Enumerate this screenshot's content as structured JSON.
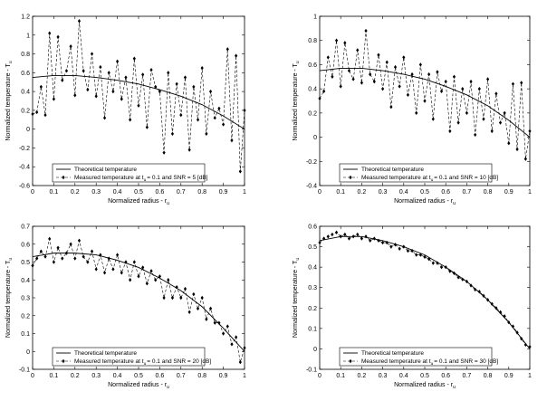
{
  "chart_data": [
    {
      "type": "line",
      "xlabel": "Normalized radius - r",
      "xlabel_sub": "u",
      "ylabel": "Normalized temperature - T",
      "ylabel_sub": "u",
      "xlim": [
        0,
        1
      ],
      "ylim": [
        -0.6,
        1.2
      ],
      "xticks": [
        "0",
        "0.1",
        "0.2",
        "0.3",
        "0.4",
        "0.5",
        "0.6",
        "0.7",
        "0.8",
        "0.9",
        "1"
      ],
      "yticks": [
        "-0.6",
        "-0.4",
        "-0.2",
        "0",
        "0.2",
        "0.4",
        "0.6",
        "0.8",
        "1",
        "1.2"
      ],
      "grid": false,
      "legend_position": "bottom-left",
      "legend": {
        "theoretical": "Theoretical temperature",
        "measured_prefix": "Measured temperature at t",
        "measured_sub": "u",
        "measured_suffix": "= 0.1 and SNR = 5 [dB]"
      },
      "series": [
        {
          "name": "Theoretical temperature",
          "style": "solid",
          "x": [
            0,
            0.1,
            0.2,
            0.3,
            0.4,
            0.5,
            0.6,
            0.7,
            0.8,
            0.9,
            1.0
          ],
          "y": [
            0.55,
            0.57,
            0.57,
            0.55,
            0.52,
            0.48,
            0.42,
            0.35,
            0.26,
            0.14,
            0.0
          ]
        },
        {
          "name": "Measured temperature at tu = 0.1 and SNR = 5 [dB]",
          "style": "dashed-diamond",
          "x": [
            0.0,
            0.02,
            0.04,
            0.06,
            0.08,
            0.1,
            0.12,
            0.14,
            0.16,
            0.18,
            0.2,
            0.22,
            0.24,
            0.26,
            0.28,
            0.3,
            0.32,
            0.34,
            0.36,
            0.38,
            0.4,
            0.42,
            0.44,
            0.46,
            0.48,
            0.5,
            0.52,
            0.54,
            0.56,
            0.58,
            0.6,
            0.62,
            0.64,
            0.66,
            0.68,
            0.7,
            0.72,
            0.74,
            0.76,
            0.78,
            0.8,
            0.82,
            0.84,
            0.86,
            0.88,
            0.9,
            0.92,
            0.94,
            0.96,
            0.98,
            1.0
          ],
          "y": [
            0.16,
            0.18,
            0.45,
            0.15,
            1.02,
            0.32,
            0.98,
            0.52,
            0.62,
            0.88,
            0.36,
            1.15,
            0.62,
            0.42,
            0.8,
            0.35,
            0.66,
            0.12,
            0.6,
            0.4,
            0.72,
            0.32,
            0.55,
            0.1,
            0.75,
            0.25,
            0.58,
            0.02,
            0.63,
            0.45,
            0.4,
            -0.25,
            0.6,
            -0.05,
            0.48,
            0.15,
            0.55,
            -0.22,
            0.45,
            0.1,
            0.65,
            -0.05,
            0.4,
            0.12,
            0.22,
            0.05,
            0.85,
            -0.12,
            0.78,
            -0.45,
            0.2
          ]
        }
      ]
    },
    {
      "type": "line",
      "xlabel": "Normalized radius - r",
      "xlabel_sub": "u",
      "ylabel": "Normalized temperature - T",
      "ylabel_sub": "u",
      "xlim": [
        0,
        1
      ],
      "ylim": [
        -0.4,
        1.0
      ],
      "xticks": [
        "0",
        "0.1",
        "0.2",
        "0.3",
        "0.4",
        "0.5",
        "0.6",
        "0.7",
        "0.8",
        "0.9",
        "1"
      ],
      "yticks": [
        "-0.4",
        "-0.2",
        "0",
        "0.2",
        "0.4",
        "0.6",
        "0.8",
        "1"
      ],
      "grid": false,
      "legend_position": "bottom-left",
      "legend": {
        "theoretical": "Theoretical temperature",
        "measured_prefix": "Measured temperature at t",
        "measured_sub": "u",
        "measured_suffix": "= 0.1 and SNR = 10 [dB]"
      },
      "series": [
        {
          "name": "Theoretical temperature",
          "style": "solid",
          "x": [
            0,
            0.1,
            0.2,
            0.3,
            0.4,
            0.5,
            0.6,
            0.7,
            0.8,
            0.9,
            1.0
          ],
          "y": [
            0.55,
            0.57,
            0.57,
            0.55,
            0.52,
            0.48,
            0.42,
            0.35,
            0.26,
            0.14,
            0.0
          ]
        },
        {
          "name": "Measured temperature at tu = 0.1 and SNR = 10 [dB]",
          "style": "dashed-diamond",
          "x": [
            0.0,
            0.02,
            0.04,
            0.06,
            0.08,
            0.1,
            0.12,
            0.14,
            0.16,
            0.18,
            0.2,
            0.22,
            0.24,
            0.26,
            0.28,
            0.3,
            0.32,
            0.34,
            0.36,
            0.38,
            0.4,
            0.42,
            0.44,
            0.46,
            0.48,
            0.5,
            0.52,
            0.54,
            0.56,
            0.58,
            0.6,
            0.62,
            0.64,
            0.66,
            0.68,
            0.7,
            0.72,
            0.74,
            0.76,
            0.78,
            0.8,
            0.82,
            0.84,
            0.86,
            0.88,
            0.9,
            0.92,
            0.94,
            0.96,
            0.98,
            1.0
          ],
          "y": [
            0.32,
            0.38,
            0.66,
            0.5,
            0.8,
            0.42,
            0.78,
            0.55,
            0.48,
            0.72,
            0.45,
            0.88,
            0.52,
            0.46,
            0.68,
            0.4,
            0.62,
            0.25,
            0.58,
            0.42,
            0.66,
            0.35,
            0.52,
            0.2,
            0.6,
            0.3,
            0.52,
            0.15,
            0.54,
            0.38,
            0.46,
            0.05,
            0.5,
            0.12,
            0.4,
            0.2,
            0.46,
            0.02,
            0.4,
            0.15,
            0.48,
            0.05,
            0.36,
            0.12,
            0.2,
            -0.05,
            0.44,
            -0.1,
            0.45,
            -0.18,
            0.05
          ]
        }
      ]
    },
    {
      "type": "line",
      "xlabel": "Normalized radius - r",
      "xlabel_sub": "u",
      "ylabel": "Normalized temperature - T",
      "ylabel_sub": "u",
      "xlim": [
        0,
        1
      ],
      "ylim": [
        -0.1,
        0.7
      ],
      "xticks": [
        "0",
        "0.1",
        "0.2",
        "0.3",
        "0.4",
        "0.5",
        "0.6",
        "0.7",
        "0.8",
        "0.9",
        "1"
      ],
      "yticks": [
        "-0.1",
        "0",
        "0.1",
        "0.2",
        "0.3",
        "0.4",
        "0.5",
        "0.6",
        "0.7"
      ],
      "grid": false,
      "legend_position": "bottom-left",
      "legend": {
        "theoretical": "Theoretical temperature",
        "measured_prefix": "Measured temperature at t",
        "measured_sub": "u",
        "measured_suffix": "= 0.1 and SNR = 20 [dB]"
      },
      "series": [
        {
          "name": "Theoretical temperature",
          "style": "solid",
          "x": [
            0,
            0.1,
            0.2,
            0.3,
            0.4,
            0.5,
            0.6,
            0.7,
            0.8,
            0.9,
            1.0
          ],
          "y": [
            0.53,
            0.55,
            0.55,
            0.54,
            0.51,
            0.47,
            0.41,
            0.34,
            0.25,
            0.13,
            0.0
          ]
        },
        {
          "name": "Measured temperature at tu = 0.1 and SNR = 20 [dB]",
          "style": "dashed-diamond",
          "x": [
            0.0,
            0.02,
            0.04,
            0.06,
            0.08,
            0.1,
            0.12,
            0.14,
            0.16,
            0.18,
            0.2,
            0.22,
            0.24,
            0.26,
            0.28,
            0.3,
            0.32,
            0.34,
            0.36,
            0.38,
            0.4,
            0.42,
            0.44,
            0.46,
            0.48,
            0.5,
            0.52,
            0.54,
            0.56,
            0.58,
            0.6,
            0.62,
            0.64,
            0.66,
            0.68,
            0.7,
            0.72,
            0.74,
            0.76,
            0.78,
            0.8,
            0.82,
            0.84,
            0.86,
            0.88,
            0.9,
            0.92,
            0.94,
            0.96,
            0.98,
            1.0
          ],
          "y": [
            0.48,
            0.52,
            0.56,
            0.53,
            0.63,
            0.5,
            0.58,
            0.52,
            0.55,
            0.6,
            0.52,
            0.62,
            0.53,
            0.5,
            0.56,
            0.46,
            0.54,
            0.44,
            0.52,
            0.46,
            0.54,
            0.44,
            0.5,
            0.4,
            0.5,
            0.42,
            0.47,
            0.38,
            0.45,
            0.4,
            0.42,
            0.3,
            0.4,
            0.3,
            0.36,
            0.3,
            0.35,
            0.22,
            0.32,
            0.24,
            0.3,
            0.18,
            0.24,
            0.16,
            0.16,
            0.1,
            0.14,
            0.04,
            0.08,
            -0.06,
            0.02
          ]
        }
      ]
    },
    {
      "type": "line",
      "xlabel": "Normalized radius - r",
      "xlabel_sub": "u",
      "ylabel": "Normalized temperature - T",
      "ylabel_sub": "u",
      "xlim": [
        0,
        1
      ],
      "ylim": [
        -0.1,
        0.6
      ],
      "xticks": [
        "0",
        "0.1",
        "0.2",
        "0.3",
        "0.4",
        "0.5",
        "0.6",
        "0.7",
        "0.8",
        "0.9",
        "1"
      ],
      "yticks": [
        "-0.1",
        "0",
        "0.1",
        "0.2",
        "0.3",
        "0.4",
        "0.5",
        "0.6"
      ],
      "grid": false,
      "legend_position": "bottom-left",
      "legend": {
        "theoretical": "Theoretical temperature",
        "measured_prefix": "Measured temperature at t",
        "measured_sub": "u",
        "measured_suffix": "= 0.1 and SNR = 30 [dB]"
      },
      "series": [
        {
          "name": "Theoretical temperature",
          "style": "solid",
          "x": [
            0,
            0.1,
            0.2,
            0.3,
            0.4,
            0.5,
            0.6,
            0.7,
            0.8,
            0.9,
            1.0
          ],
          "y": [
            0.53,
            0.55,
            0.55,
            0.53,
            0.5,
            0.46,
            0.4,
            0.33,
            0.24,
            0.13,
            0.0
          ]
        },
        {
          "name": "Measured temperature at tu = 0.1 and SNR = 30 [dB]",
          "style": "dashed-diamond",
          "x": [
            0.0,
            0.02,
            0.04,
            0.06,
            0.08,
            0.1,
            0.12,
            0.14,
            0.16,
            0.18,
            0.2,
            0.22,
            0.24,
            0.26,
            0.28,
            0.3,
            0.32,
            0.34,
            0.36,
            0.38,
            0.4,
            0.42,
            0.44,
            0.46,
            0.48,
            0.5,
            0.52,
            0.54,
            0.56,
            0.58,
            0.6,
            0.62,
            0.64,
            0.66,
            0.68,
            0.7,
            0.72,
            0.74,
            0.76,
            0.78,
            0.8,
            0.82,
            0.84,
            0.86,
            0.88,
            0.9,
            0.92,
            0.94,
            0.96,
            0.98,
            1.0
          ],
          "y": [
            0.52,
            0.54,
            0.55,
            0.56,
            0.57,
            0.55,
            0.56,
            0.54,
            0.55,
            0.56,
            0.54,
            0.55,
            0.53,
            0.54,
            0.53,
            0.52,
            0.52,
            0.5,
            0.51,
            0.49,
            0.5,
            0.48,
            0.48,
            0.46,
            0.46,
            0.45,
            0.44,
            0.42,
            0.42,
            0.4,
            0.4,
            0.38,
            0.37,
            0.35,
            0.34,
            0.33,
            0.31,
            0.29,
            0.28,
            0.26,
            0.24,
            0.22,
            0.2,
            0.18,
            0.16,
            0.13,
            0.11,
            0.08,
            0.05,
            0.02,
            0.01
          ]
        }
      ]
    }
  ]
}
